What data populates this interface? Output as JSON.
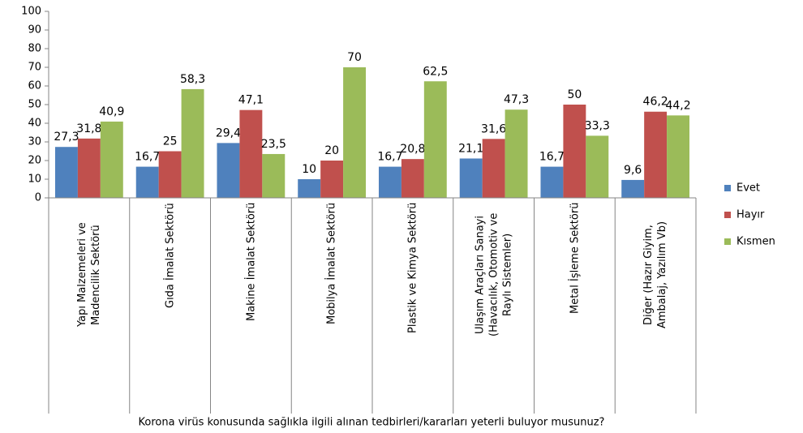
{
  "chart_data": {
    "type": "bar",
    "x_label": "Korona virüs konusunda sağlıkla ilgili alınan tedbirleri/kararları yeterli buluyor musunuz?",
    "categories": [
      "Yapı Malzemeleri ve Madencilik Sektörü",
      "Gıda İmalat Sektörü",
      "Makine İmalat Sektörü",
      "Mobilya İmalat Sektörü",
      "Plastik ve Kimya Sektörü",
      "Ulaşım Araçları Sanayi (Havacılık, Otomotiv ve Raylı Sistemler)",
      "Metal İşleme Sektörü",
      "Diğer (Hazır Giyim, Ambalaj, Yazılım Vb)"
    ],
    "series": [
      {
        "name": "Evet",
        "color": "#4f81bd",
        "values": [
          27.3,
          16.7,
          29.4,
          10,
          16.7,
          21.1,
          16.7,
          9.6
        ],
        "value_labels": [
          "27,3",
          "16,7",
          "29,4",
          "10",
          "16,7",
          "21,1",
          "16,7",
          "9,6"
        ]
      },
      {
        "name": "Hayır",
        "color": "#c0504d",
        "values": [
          31.8,
          25,
          47.1,
          20,
          20.8,
          31.6,
          50,
          46.2
        ],
        "value_labels": [
          "31,8",
          "25",
          "47,1",
          "20",
          "20,8",
          "31,6",
          "50",
          "46,2"
        ]
      },
      {
        "name": "Kısmen",
        "color": "#9bbb59",
        "values": [
          40.9,
          58.3,
          23.5,
          70,
          62.5,
          47.3,
          33.3,
          44.2
        ],
        "value_labels": [
          "40,9",
          "58,3",
          "23,5",
          "70",
          "62,5",
          "47,3",
          "33,3",
          "44,2"
        ]
      }
    ],
    "ylim": [
      0,
      100
    ],
    "yticks": [
      0,
      10,
      20,
      30,
      40,
      50,
      60,
      70,
      80,
      90,
      100
    ],
    "legend": "right",
    "grid": false
  }
}
